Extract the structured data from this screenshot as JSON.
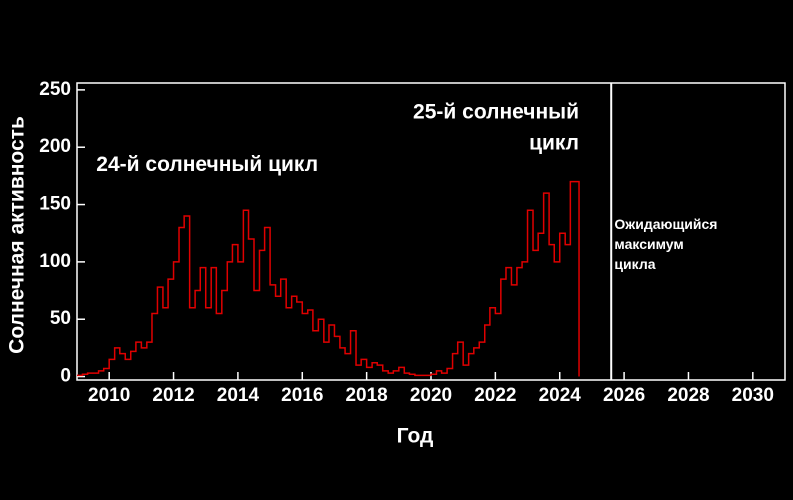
{
  "chart_data": {
    "type": "step",
    "y_label": "Солнечная активность",
    "x_label": "Год",
    "xlim": [
      2009,
      2031
    ],
    "ylim": [
      -3,
      256
    ],
    "xticks": [
      2010,
      2012,
      2014,
      2016,
      2018,
      2020,
      2022,
      2024,
      2026,
      2028,
      2030
    ],
    "yticks": [
      0,
      50,
      100,
      150,
      200,
      250
    ],
    "color": "#e00000",
    "x": [
      2009,
      2009.17,
      2009.33,
      2009.5,
      2009.67,
      2009.83,
      2010,
      2010.17,
      2010.33,
      2010.5,
      2010.67,
      2010.83,
      2011,
      2011.17,
      2011.33,
      2011.5,
      2011.67,
      2011.83,
      2012,
      2012.17,
      2012.33,
      2012.5,
      2012.67,
      2012.83,
      2013,
      2013.17,
      2013.33,
      2013.5,
      2013.67,
      2013.83,
      2014,
      2014.17,
      2014.33,
      2014.5,
      2014.67,
      2014.83,
      2015,
      2015.17,
      2015.33,
      2015.5,
      2015.67,
      2015.83,
      2016,
      2016.17,
      2016.33,
      2016.5,
      2016.67,
      2016.83,
      2017,
      2017.17,
      2017.33,
      2017.5,
      2017.67,
      2017.83,
      2018,
      2018.17,
      2018.33,
      2018.5,
      2018.67,
      2018.83,
      2019,
      2019.17,
      2019.33,
      2019.5,
      2019.67,
      2019.83,
      2020,
      2020.17,
      2020.33,
      2020.5,
      2020.67,
      2020.83,
      2021,
      2021.17,
      2021.33,
      2021.5,
      2021.67,
      2021.83,
      2022,
      2022.17,
      2022.33,
      2022.5,
      2022.67,
      2022.83,
      2023,
      2023.17,
      2023.33,
      2023.5,
      2023.67,
      2023.83,
      2024,
      2024.17,
      2024.33,
      2024.5,
      2024.6
    ],
    "values": [
      1,
      2,
      3,
      3,
      5,
      7,
      15,
      25,
      20,
      15,
      22,
      30,
      25,
      30,
      55,
      78,
      60,
      85,
      100,
      130,
      140,
      60,
      75,
      95,
      60,
      95,
      55,
      75,
      100,
      115,
      100,
      145,
      120,
      75,
      110,
      130,
      80,
      70,
      85,
      60,
      70,
      65,
      55,
      58,
      40,
      50,
      30,
      45,
      35,
      25,
      20,
      40,
      10,
      15,
      8,
      12,
      10,
      5,
      3,
      5,
      8,
      3,
      2,
      1,
      1,
      1,
      2,
      5,
      3,
      7,
      20,
      30,
      10,
      20,
      25,
      30,
      45,
      60,
      55,
      85,
      95,
      80,
      95,
      100,
      145,
      110,
      125,
      160,
      115,
      100,
      125,
      115,
      170,
      170,
      0
    ],
    "annotations": [
      {
        "lines": [
          "24-й солнечный цикл"
        ],
        "x": 2009.6,
        "y": 184,
        "anchor": "start"
      },
      {
        "lines": [
          "25-й солнечный",
          "цикл"
        ],
        "x": 2024.6,
        "y": 230,
        "anchor": "end"
      },
      {
        "lines": [
          "Ожидающийся",
          "максимум",
          "цикла"
        ],
        "x": 2025.7,
        "y": 132,
        "anchor": "start",
        "small": true
      }
    ],
    "marker_line_x": 2025.6,
    "marker_line_color": "#ffffff"
  }
}
